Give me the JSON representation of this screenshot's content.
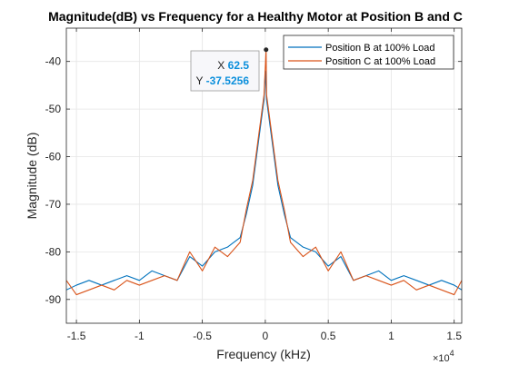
{
  "chart_data": {
    "type": "line",
    "title": "Magnitude(dB) vs Frequency for a Healthy Motor at Position B and C",
    "xlabel": "Frequency (kHz)",
    "ylabel": "Magnitude (dB)",
    "x_exponent_label": "×10",
    "x_exponent_power": "4",
    "xlim": [
      -1.58,
      1.56
    ],
    "ylim": [
      -95,
      -33
    ],
    "xticks": [
      -1.5,
      -1,
      -0.5,
      0,
      0.5,
      1,
      1.5
    ],
    "xtick_labels": [
      "-1.5",
      "-1",
      "-0.5",
      "0",
      "0.5",
      "1",
      "1.5"
    ],
    "yticks": [
      -90,
      -80,
      -70,
      -60,
      -50,
      -40
    ],
    "ytick_labels": [
      "-90",
      "-80",
      "-70",
      "-60",
      "-50",
      "-40"
    ],
    "grid": true,
    "legend_position": "top-right",
    "series": [
      {
        "name": "Position B at 100% Load",
        "color": "#0072BD",
        "x": [
          -1.58,
          -1.5,
          -1.4,
          -1.3,
          -1.2,
          -1.1,
          -1.0,
          -0.9,
          -0.8,
          -0.7,
          -0.6,
          -0.5,
          -0.4,
          -0.3,
          -0.2,
          -0.15,
          -0.1,
          -0.06,
          -0.03,
          -0.01,
          0.0,
          0.01,
          0.03,
          0.06,
          0.1,
          0.15,
          0.2,
          0.3,
          0.4,
          0.5,
          0.6,
          0.7,
          0.8,
          0.9,
          1.0,
          1.1,
          1.2,
          1.3,
          1.4,
          1.5,
          1.56
        ],
        "y": [
          -88,
          -87,
          -86,
          -87,
          -86,
          -85,
          -86,
          -84,
          -85,
          -86,
          -81,
          -83,
          -80,
          -79,
          -77,
          -72,
          -66,
          -58,
          -52,
          -48,
          -42,
          -48,
          -52,
          -58,
          -66,
          -72,
          -77,
          -79,
          -80,
          -83,
          -81,
          -86,
          -85,
          -84,
          -86,
          -85,
          -86,
          -87,
          -86,
          -87,
          -88
        ]
      },
      {
        "name": "Position C at 100% Load",
        "color": "#D95319",
        "x": [
          -1.58,
          -1.5,
          -1.4,
          -1.3,
          -1.2,
          -1.1,
          -1.0,
          -0.9,
          -0.8,
          -0.7,
          -0.6,
          -0.5,
          -0.4,
          -0.3,
          -0.2,
          -0.15,
          -0.1,
          -0.06,
          -0.03,
          -0.01,
          0.00625,
          0.01,
          0.03,
          0.06,
          0.1,
          0.15,
          0.2,
          0.3,
          0.4,
          0.5,
          0.6,
          0.7,
          0.8,
          0.9,
          1.0,
          1.1,
          1.2,
          1.3,
          1.4,
          1.5,
          1.56
        ],
        "y": [
          -86,
          -89,
          -88,
          -87,
          -88,
          -86,
          -87,
          -86,
          -85,
          -86,
          -80,
          -84,
          -79,
          -81,
          -78,
          -71,
          -65,
          -57,
          -51,
          -47,
          -37.5256,
          -47,
          -51,
          -57,
          -65,
          -71,
          -78,
          -81,
          -79,
          -84,
          -80,
          -86,
          -85,
          -86,
          -87,
          -86,
          -88,
          -87,
          -88,
          -89,
          -86
        ]
      }
    ],
    "annotations": [
      {
        "type": "datatip",
        "series": "Position C at 100% Load",
        "x": 0.00625,
        "y": -37.5256,
        "x_label": "X",
        "x_value": "62.5",
        "y_label": "Y",
        "y_value": "-37.5256"
      }
    ]
  },
  "style": {
    "value_color": "#0b8fdc",
    "grid_color": "#e5e5e5",
    "axis_color": "#262626"
  }
}
